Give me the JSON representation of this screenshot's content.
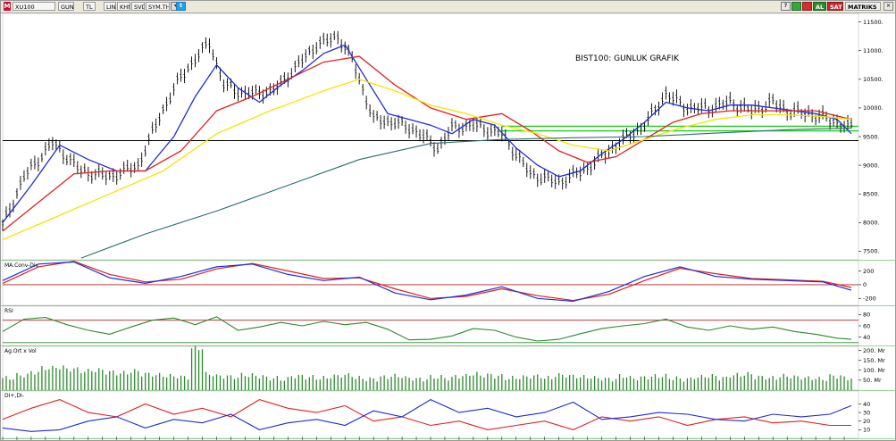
{
  "toolbar": {
    "symbol": "XU100",
    "period": "GUN",
    "currency": "TL",
    "buttons": [
      "LIN",
      "KHN",
      "SVD",
      "SYM.THP"
    ],
    "right_buttons": {
      "al": "AL",
      "sat": "SAT"
    },
    "brand": "MATRIKS"
  },
  "colors": {
    "price_bar": "#000000",
    "ma_short": "#1f2bd6",
    "ma_medium": "#e02020",
    "ma_long": "#f2e600",
    "ma_very_long": "#2e6e6e",
    "macd_line": "#1f2bd6",
    "signal_line": "#e02020",
    "rsi_line": "#2a8a2a",
    "volume": "#2a8a2a",
    "dip": "#e02020",
    "dim": "#1f2bd6",
    "support_line": "#000000",
    "green_band": "#22cc22"
  },
  "icons": [
    "logo-icon",
    "twitter-icon",
    "green-button-icon",
    "red-button-icon",
    "window-close-icon"
  ],
  "chart_data": [
    {
      "type": "line",
      "panel": "price",
      "title": "BIST100: GUNLUK GRAFIK",
      "ylim": [
        7350,
        11650
      ],
      "y_ticks": [
        7500,
        8000,
        8500,
        9000,
        9500,
        10000,
        10500,
        11000,
        11500
      ],
      "y_tick_labels": [
        "7500.",
        "8000.",
        "8500.",
        "9000.",
        "9500.",
        "10000.",
        "10500.",
        "11000.",
        "11500."
      ],
      "x_range": [
        0,
        240
      ],
      "horizontal_lines": [
        {
          "name": "support",
          "value": 9430
        },
        {
          "name": "green-band-upper",
          "value": 9680
        },
        {
          "name": "green-band-lower",
          "value": 9600
        }
      ],
      "series": [
        {
          "name": "price",
          "x": [
            0,
            6,
            14,
            22,
            30,
            38,
            44,
            50,
            58,
            62,
            68,
            76,
            82,
            88,
            94,
            98,
            104,
            110,
            116,
            122,
            126,
            132,
            140,
            148,
            156,
            164,
            172,
            180,
            186,
            192,
            198,
            204,
            210,
            216,
            220,
            226,
            232,
            238
          ],
          "values": [
            7950,
            8800,
            9400,
            8900,
            8800,
            9000,
            9850,
            10550,
            11150,
            10400,
            10250,
            10300,
            10700,
            11100,
            11250,
            10850,
            9800,
            9750,
            9600,
            9300,
            9650,
            9700,
            9550,
            8850,
            8700,
            8950,
            9350,
            9700,
            10250,
            10000,
            10000,
            10100,
            9950,
            10100,
            9950,
            9900,
            9800,
            9650
          ]
        },
        {
          "name": "ma-short",
          "x": [
            0,
            8,
            16,
            24,
            32,
            40,
            48,
            54,
            60,
            66,
            72,
            78,
            84,
            90,
            96,
            102,
            108,
            114,
            120,
            126,
            132,
            138,
            144,
            150,
            156,
            162,
            168,
            174,
            180,
            186,
            192,
            198,
            204,
            210,
            216,
            222,
            228,
            234,
            238
          ],
          "values": [
            8000,
            8650,
            9350,
            9100,
            8900,
            8900,
            9500,
            10200,
            10750,
            10350,
            10100,
            10400,
            10650,
            10950,
            11100,
            10500,
            9900,
            9800,
            9700,
            9550,
            9800,
            9700,
            9300,
            9000,
            8800,
            8900,
            9200,
            9450,
            9750,
            10100,
            10000,
            9950,
            10050,
            10050,
            10000,
            9950,
            9900,
            9800,
            9550
          ]
        },
        {
          "name": "ma-medium",
          "x": [
            0,
            10,
            20,
            30,
            40,
            50,
            60,
            70,
            80,
            90,
            100,
            110,
            120,
            130,
            140,
            148,
            156,
            164,
            172,
            180,
            188,
            196,
            204,
            212,
            220,
            228,
            238
          ],
          "values": [
            7850,
            8350,
            8850,
            8900,
            8900,
            9250,
            9950,
            10200,
            10500,
            10800,
            10900,
            10400,
            10000,
            9800,
            9900,
            9600,
            9250,
            9050,
            9150,
            9450,
            9750,
            9900,
            9950,
            9950,
            9950,
            9950,
            9800
          ]
        },
        {
          "name": "ma-long",
          "x": [
            0,
            15,
            30,
            45,
            60,
            75,
            90,
            100,
            110,
            120,
            130,
            140,
            150,
            160,
            170,
            180,
            190,
            200,
            210,
            220,
            230,
            238
          ],
          "values": [
            7700,
            8100,
            8500,
            8900,
            9550,
            9950,
            10300,
            10500,
            10300,
            10050,
            9900,
            9700,
            9550,
            9350,
            9250,
            9450,
            9650,
            9800,
            9880,
            9880,
            9850,
            9800
          ]
        },
        {
          "name": "ma-very-long",
          "x": [
            22,
            40,
            60,
            80,
            100,
            120,
            140,
            160,
            180,
            200,
            220,
            238
          ],
          "values": [
            7380,
            7800,
            8200,
            8650,
            9100,
            9380,
            9450,
            9480,
            9500,
            9560,
            9620,
            9650
          ]
        }
      ]
    },
    {
      "type": "line",
      "panel": "macd",
      "title": "MA.Conv-Div",
      "ylim": [
        -300,
        350
      ],
      "y_ticks": [
        200,
        0,
        -200
      ],
      "y_tick_labels": [
        "200",
        "0",
        "-200"
      ],
      "series": [
        {
          "name": "macd",
          "x": [
            0,
            10,
            20,
            30,
            40,
            50,
            60,
            70,
            80,
            90,
            100,
            110,
            120,
            130,
            140,
            150,
            160,
            170,
            180,
            190,
            200,
            210,
            220,
            230,
            238
          ],
          "values": [
            60,
            300,
            330,
            100,
            20,
            120,
            260,
            300,
            150,
            60,
            110,
            -120,
            -220,
            -150,
            -30,
            -200,
            -240,
            -100,
            120,
            260,
            120,
            80,
            60,
            40,
            -80
          ]
        },
        {
          "name": "signal",
          "x": [
            0,
            10,
            20,
            30,
            40,
            50,
            60,
            70,
            80,
            90,
            100,
            110,
            120,
            130,
            140,
            150,
            160,
            170,
            180,
            190,
            200,
            210,
            220,
            230,
            238
          ],
          "values": [
            20,
            260,
            340,
            150,
            40,
            80,
            230,
            310,
            200,
            90,
            100,
            -60,
            -200,
            -170,
            -60,
            -160,
            -230,
            -140,
            60,
            240,
            160,
            90,
            70,
            50,
            -40
          ]
        }
      ]
    },
    {
      "type": "line",
      "panel": "rsi",
      "title": "RSI",
      "ylim": [
        25,
        95
      ],
      "y_ticks": [
        80,
        60,
        40
      ],
      "y_tick_labels": [
        "80",
        "60",
        "40"
      ],
      "horizontal_lines": [
        {
          "name": "upper",
          "value": 70
        },
        {
          "name": "lower",
          "value": 30
        }
      ],
      "series": [
        {
          "name": "rsi",
          "x": [
            0,
            6,
            12,
            18,
            24,
            30,
            36,
            42,
            48,
            54,
            60,
            66,
            72,
            78,
            84,
            90,
            96,
            102,
            108,
            114,
            120,
            126,
            132,
            138,
            144,
            150,
            156,
            162,
            168,
            174,
            180,
            186,
            192,
            198,
            204,
            210,
            216,
            222,
            228,
            234,
            238
          ],
          "values": [
            50,
            72,
            75,
            62,
            52,
            45,
            58,
            70,
            74,
            62,
            76,
            52,
            58,
            66,
            60,
            68,
            62,
            66,
            54,
            35,
            36,
            42,
            55,
            52,
            40,
            33,
            36,
            46,
            55,
            60,
            64,
            72,
            58,
            52,
            60,
            54,
            58,
            50,
            45,
            38,
            36
          ]
        }
      ]
    },
    {
      "type": "bar",
      "panel": "volume",
      "title": "Ag.Ort x Vol",
      "ylim": [
        0,
        220
      ],
      "y_ticks": [
        200,
        150,
        100,
        50
      ],
      "y_tick_labels": [
        "200. Mr",
        "150. Mr",
        "100. Mr",
        "50. Mr"
      ],
      "series": [
        {
          "name": "volume",
          "values": [
            60,
            75,
            90,
            110,
            115,
            105,
            95,
            100,
            90,
            85,
            95,
            80,
            75,
            70,
            65,
            210,
            80,
            70,
            65,
            75,
            70,
            60,
            55,
            70,
            65,
            60,
            70,
            75,
            60,
            55,
            65,
            70,
            60,
            55,
            65,
            60,
            70,
            80,
            75,
            70,
            60,
            65,
            70,
            60,
            75,
            70,
            65,
            60,
            55,
            70,
            60,
            65,
            70,
            60,
            55,
            65,
            70,
            60,
            75,
            80,
            65,
            60,
            70,
            65,
            60,
            55,
            70,
            60
          ]
        }
      ]
    },
    {
      "type": "line",
      "panel": "dmi",
      "title": "DI+,DI-",
      "ylim": [
        0,
        55
      ],
      "y_ticks": [
        40,
        30,
        20,
        10
      ],
      "y_tick_labels": [
        "40",
        "30",
        "20",
        "10"
      ],
      "series": [
        {
          "name": "di-plus",
          "x": [
            0,
            8,
            16,
            24,
            32,
            40,
            48,
            56,
            64,
            72,
            80,
            88,
            96,
            104,
            112,
            120,
            128,
            136,
            144,
            152,
            160,
            168,
            176,
            184,
            192,
            200,
            208,
            216,
            224,
            232,
            238
          ],
          "values": [
            22,
            35,
            45,
            30,
            25,
            40,
            28,
            35,
            25,
            45,
            35,
            30,
            38,
            20,
            25,
            15,
            20,
            10,
            15,
            20,
            10,
            25,
            20,
            25,
            15,
            22,
            25,
            18,
            20,
            15,
            15
          ]
        },
        {
          "name": "di-minus",
          "x": [
            0,
            8,
            16,
            24,
            32,
            40,
            48,
            56,
            64,
            72,
            80,
            88,
            96,
            104,
            112,
            120,
            128,
            136,
            144,
            152,
            160,
            168,
            176,
            184,
            192,
            200,
            208,
            216,
            224,
            232,
            238
          ],
          "values": [
            12,
            8,
            10,
            20,
            25,
            12,
            22,
            18,
            28,
            10,
            18,
            22,
            15,
            32,
            25,
            45,
            30,
            35,
            25,
            30,
            42,
            22,
            25,
            30,
            28,
            22,
            20,
            28,
            25,
            28,
            38
          ]
        }
      ]
    }
  ]
}
